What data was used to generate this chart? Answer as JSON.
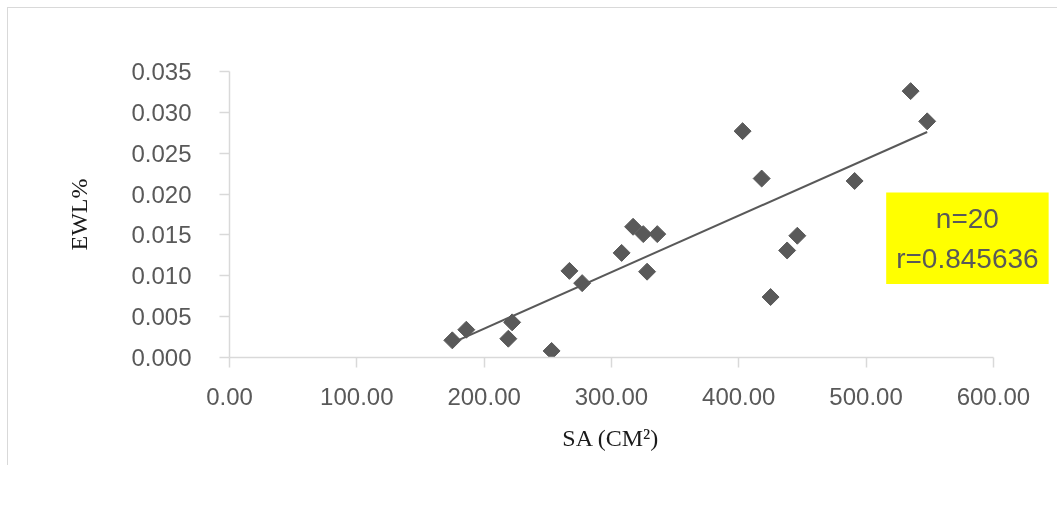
{
  "chart_data": {
    "type": "scatter",
    "xlabel": "SA (CM²)",
    "ylabel": "EWL%",
    "annotations": [
      "n=20",
      "r=0.845636"
    ],
    "marker": "diamond",
    "xlim": [
      0,
      600
    ],
    "xticks": [
      {
        "value": 0,
        "label": "0.00"
      },
      {
        "value": 100,
        "label": "100.00"
      },
      {
        "value": 200,
        "label": "200.00"
      },
      {
        "value": 300,
        "label": "300.00"
      },
      {
        "value": 400,
        "label": "400.00"
      },
      {
        "value": 500,
        "label": "500.00"
      },
      {
        "value": 600,
        "label": "600.00"
      }
    ],
    "ylim": [
      0,
      0.035
    ],
    "yticks": [
      {
        "value": 0,
        "label": "0.000"
      },
      {
        "value": 0.005,
        "label": "0.005"
      },
      {
        "value": 0.01,
        "label": "0.010"
      },
      {
        "value": 0.015,
        "label": "0.015"
      },
      {
        "value": 0.02,
        "label": "0.020"
      },
      {
        "value": 0.025,
        "label": "0.025"
      },
      {
        "value": 0.03,
        "label": "0.030"
      },
      {
        "value": 0.035,
        "label": "0.035"
      }
    ],
    "series": [
      {
        "color": "#595959",
        "x": [
          175,
          186,
          219,
          222,
          253,
          267,
          277,
          308,
          317,
          325,
          328,
          336,
          403,
          418,
          425,
          438,
          446,
          491,
          535,
          548
        ],
        "values": [
          0.0021,
          0.0034,
          0.0023,
          0.0043,
          0.0008,
          0.0106,
          0.0091,
          0.0128,
          0.016,
          0.0151,
          0.0105,
          0.0151,
          0.0277,
          0.0219,
          0.0074,
          0.0131,
          0.0149,
          0.0216,
          0.0326,
          0.0289
        ]
      },
      {
        "type": "line",
        "marker": "none",
        "color": "#595959",
        "x": [
          175,
          548
        ],
        "values": [
          0.0018,
          0.0276
        ]
      }
    ]
  }
}
